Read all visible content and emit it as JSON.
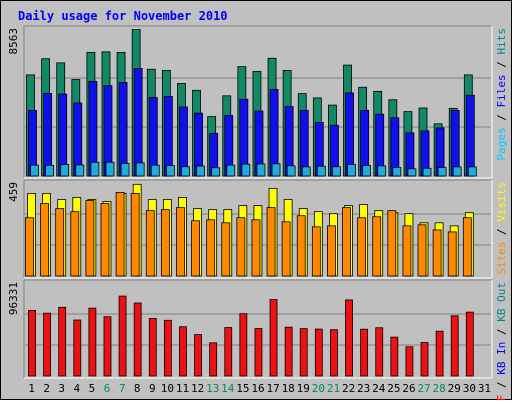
{
  "chart_data": {
    "type": "bar",
    "title": "Daily usage for November 2010",
    "categories": [
      "1",
      "2",
      "3",
      "4",
      "5",
      "6",
      "7",
      "8",
      "9",
      "10",
      "11",
      "12",
      "13",
      "14",
      "15",
      "16",
      "17",
      "18",
      "19",
      "20",
      "21",
      "22",
      "23",
      "24",
      "25",
      "26",
      "27",
      "28",
      "29",
      "30",
      "31"
    ],
    "weekend_days": [
      "6",
      "7",
      "13",
      "14",
      "20",
      "21",
      "27",
      "28"
    ],
    "panels": [
      {
        "name": "hits-files-pages",
        "ymax_label": "8563",
        "ymax": 8563,
        "legend": [
          {
            "text": "Pages",
            "color": "#00ccff"
          },
          {
            "text": " / ",
            "color": "#000000"
          },
          {
            "text": "Files",
            "color": "#0000ff"
          },
          {
            "text": " / ",
            "color": "#000000"
          },
          {
            "text": "Hits",
            "color": "#008888"
          }
        ],
        "series": [
          {
            "name": "Hits",
            "color": "#118866",
            "values": [
              5920,
              6860,
              6620,
              5650,
              7230,
              7260,
              7230,
              8560,
              6250,
              6180,
              5420,
              5020,
              3490,
              4700,
              6400,
              6120,
              6890,
              6180,
              4830,
              4580,
              4160,
              6490,
              5200,
              4960,
              4470,
              3780,
              3990,
              3070,
              3970,
              5920,
              0
            ]
          },
          {
            "name": "Files",
            "color": "#1010ee",
            "values": [
              3850,
              4840,
              4800,
              4280,
              5540,
              5290,
              5480,
              6290,
              4610,
              4660,
              4050,
              3690,
              2510,
              3560,
              4500,
              3810,
              5070,
              4070,
              3850,
              3150,
              2990,
              4870,
              3850,
              3630,
              3420,
              2540,
              2660,
              2830,
              3850,
              4730,
              0
            ]
          },
          {
            "name": "Pages",
            "color": "#22aadd",
            "values": [
              660,
              650,
              700,
              670,
              830,
              830,
              760,
              790,
              660,
              640,
              570,
              610,
              510,
              660,
              720,
              730,
              740,
              620,
              560,
              600,
              570,
              700,
              640,
              620,
              530,
              450,
              480,
              520,
              560,
              560,
              0
            ]
          }
        ]
      },
      {
        "name": "visits-sites",
        "ymax_label": "459",
        "ymax": 459,
        "legend": [
          {
            "text": "Sites",
            "color": "#ff8800"
          },
          {
            "text": " / ",
            "color": "#000000"
          },
          {
            "text": "Visits",
            "color": "#ffff00"
          }
        ],
        "series": [
          {
            "name": "Visits",
            "color": "#ffff00",
            "values": [
              410,
              410,
              380,
              390,
              380,
              370,
              410,
              455,
              380,
              380,
              390,
              335,
              330,
              330,
              350,
              350,
              435,
              380,
              335,
              320,
              310,
              350,
              355,
              325,
              315,
              310,
              265,
              265,
              250,
              315,
              0
            ]
          },
          {
            "name": "Sites",
            "color": "#ff8800",
            "values": [
              290,
              360,
              335,
              320,
              375,
              360,
              415,
              410,
              325,
              330,
              340,
              275,
              280,
              265,
              290,
              280,
              340,
              270,
              300,
              245,
              250,
              340,
              290,
              295,
              325,
              250,
              255,
              230,
              220,
              290,
              0
            ]
          }
        ]
      },
      {
        "name": "kb",
        "ymax_label": "96331",
        "ymax": 96331,
        "legend": [
          {
            "text": "KB F",
            "color": "#ff0000"
          },
          {
            "text": " / ",
            "color": "#000000"
          },
          {
            "text": "KB In",
            "color": "#0000ff"
          },
          {
            "text": " / ",
            "color": "#000000"
          },
          {
            "text": "KB Out",
            "color": "#008888"
          }
        ],
        "series": [
          {
            "name": "KB F",
            "color": "#ee1111",
            "values": [
              68500,
              65600,
              71700,
              58500,
              70800,
              61900,
              83300,
              76100,
              60200,
              58200,
              51500,
              43400,
              34900,
              50700,
              65100,
              49700,
              79700,
              51100,
              49600,
              49100,
              48500,
              79300,
              49000,
              50500,
              40800,
              30800,
              35200,
              46900,
              62900,
              66700,
              0
            ]
          }
        ]
      }
    ]
  }
}
